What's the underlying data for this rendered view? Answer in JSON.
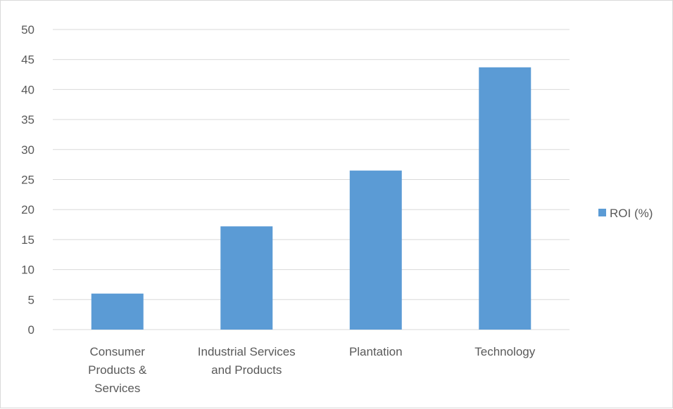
{
  "chart_data": {
    "type": "bar",
    "categories": [
      [
        "Consumer",
        "Products &",
        "Services"
      ],
      [
        "Industrial Services",
        "and Products"
      ],
      [
        "Plantation"
      ],
      [
        "Technology"
      ]
    ],
    "series": [
      {
        "name": "ROI (%)",
        "color": "#5b9bd5",
        "values": [
          6,
          17.2,
          26.5,
          43.7
        ]
      }
    ],
    "y_ticks": [
      0,
      5,
      10,
      15,
      20,
      25,
      30,
      35,
      40,
      45,
      50
    ],
    "ylim": [
      0,
      50
    ],
    "grid": true,
    "legend_position": "right"
  }
}
